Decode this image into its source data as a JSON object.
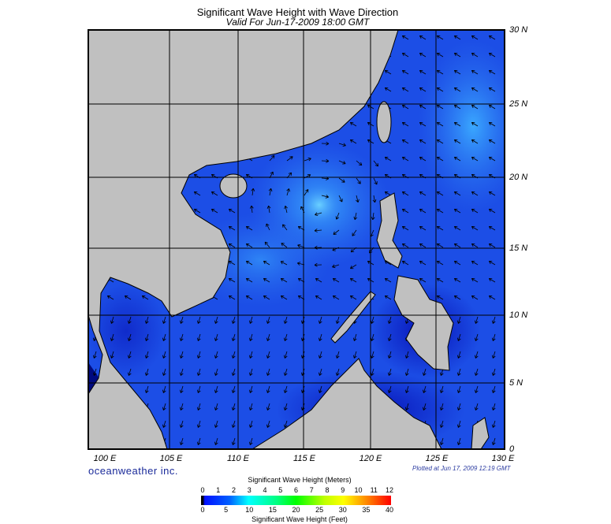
{
  "title": "Significant Wave Height with Wave Direction",
  "subtitle": "Valid For Jun-17-2009 18:00 GMT",
  "lat_labels": [
    "30 N",
    "25 N",
    "20 N",
    "15 N",
    "10 N",
    "5 N",
    "0"
  ],
  "lon_labels": [
    "100 E",
    "105 E",
    "110 E",
    "115 E",
    "120 E",
    "125 E",
    "130 E"
  ],
  "brand": "oceanweather inc.",
  "plotted": "Plotted at Jun 17, 2009 12:19 GMT",
  "colorbar": {
    "meters_title": "Significant Wave Height (Meters)",
    "feet_title": "Significant Wave Height (Feet)",
    "meters_ticks": [
      "0",
      "1",
      "2",
      "3",
      "4",
      "5",
      "6",
      "7",
      "8",
      "9",
      "10",
      "11",
      "12"
    ],
    "feet_ticks": [
      "0",
      "5",
      "10",
      "15",
      "20",
      "25",
      "30",
      "35",
      "40"
    ]
  },
  "colors": {
    "land": "#c0c0c0",
    "sea_base": "#1c4ee6",
    "sea_light": "#3aa0ff",
    "sea_dark": "#0a1ec8"
  }
}
